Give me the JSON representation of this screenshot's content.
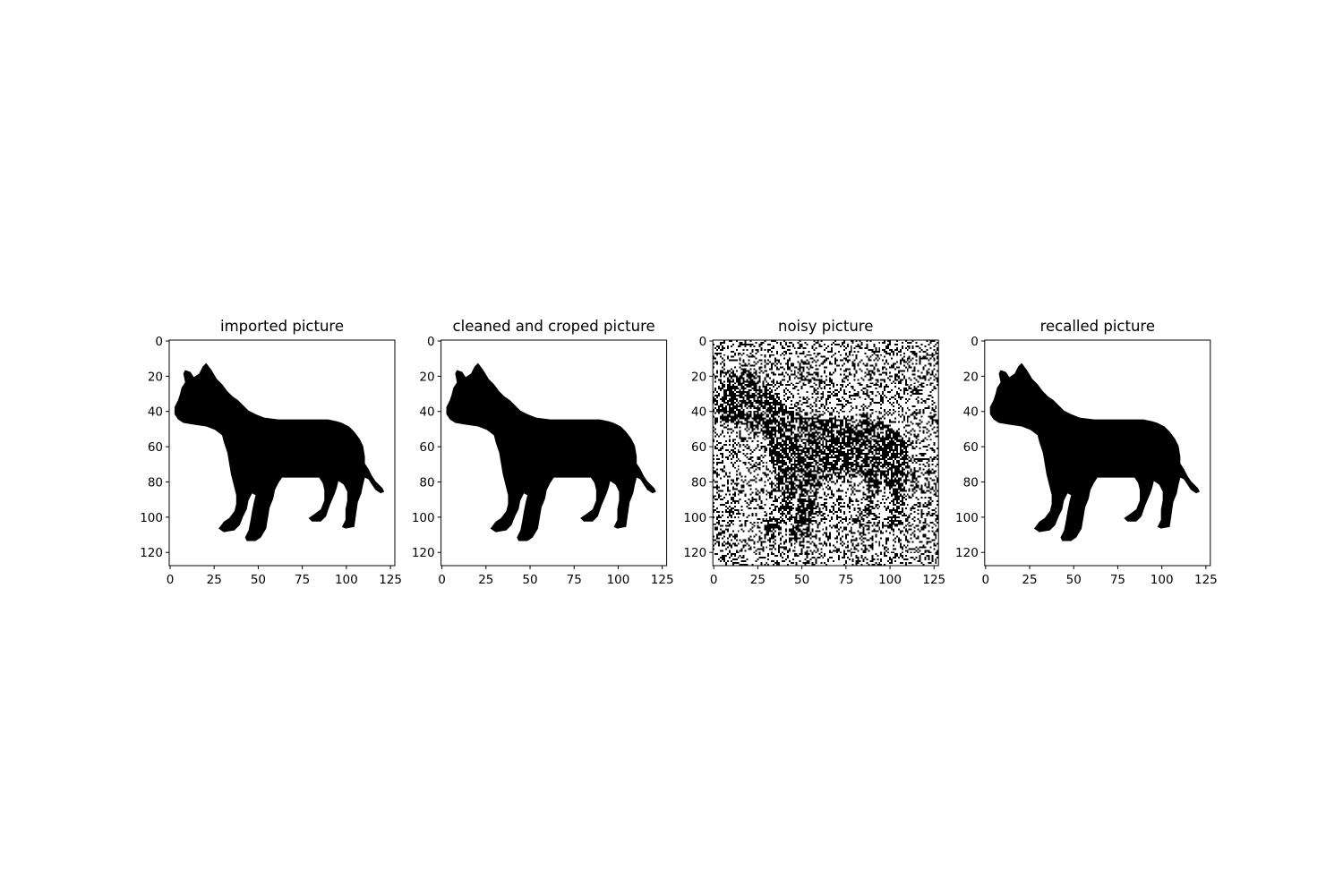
{
  "chart_data": [
    {
      "type": "heatmap",
      "title": "imported picture",
      "colormap": "binary (black = object, white = background)",
      "image_size": [
        128,
        128
      ],
      "xlim": [
        0,
        127
      ],
      "ylim": [
        127,
        0
      ],
      "xticks": [
        0,
        25,
        50,
        75,
        100,
        125
      ],
      "yticks": [
        0,
        20,
        40,
        60,
        80,
        100,
        120
      ],
      "content": "clean dog silhouette",
      "silhouette": "dog"
    },
    {
      "type": "heatmap",
      "title": "cleaned and croped picture",
      "colormap": "binary (black = object, white = background)",
      "image_size": [
        128,
        128
      ],
      "xlim": [
        0,
        127
      ],
      "ylim": [
        127,
        0
      ],
      "xticks": [
        0,
        25,
        50,
        75,
        100,
        125
      ],
      "yticks": [
        0,
        20,
        40,
        60,
        80,
        100,
        120
      ],
      "content": "clean dog silhouette",
      "silhouette": "dog"
    },
    {
      "type": "heatmap",
      "title": "noisy picture",
      "colormap": "binary (black = object, white = background)",
      "image_size": [
        128,
        128
      ],
      "xlim": [
        0,
        127
      ],
      "ylim": [
        127,
        0
      ],
      "xticks": [
        0,
        25,
        50,
        75,
        100,
        125
      ],
      "yticks": [
        0,
        20,
        40,
        60,
        80,
        100,
        120
      ],
      "content": "dog silhouette with random pixel noise",
      "silhouette": "dog",
      "noise_fraction": 0.3
    },
    {
      "type": "heatmap",
      "title": "recalled picture",
      "colormap": "binary (black = object, white = background)",
      "image_size": [
        128,
        128
      ],
      "xlim": [
        0,
        127
      ],
      "ylim": [
        127,
        0
      ],
      "xticks": [
        0,
        25,
        50,
        75,
        100,
        125
      ],
      "yticks": [
        0,
        20,
        40,
        60,
        80,
        100,
        120
      ],
      "content": "clean dog silhouette",
      "silhouette": "dog"
    }
  ]
}
